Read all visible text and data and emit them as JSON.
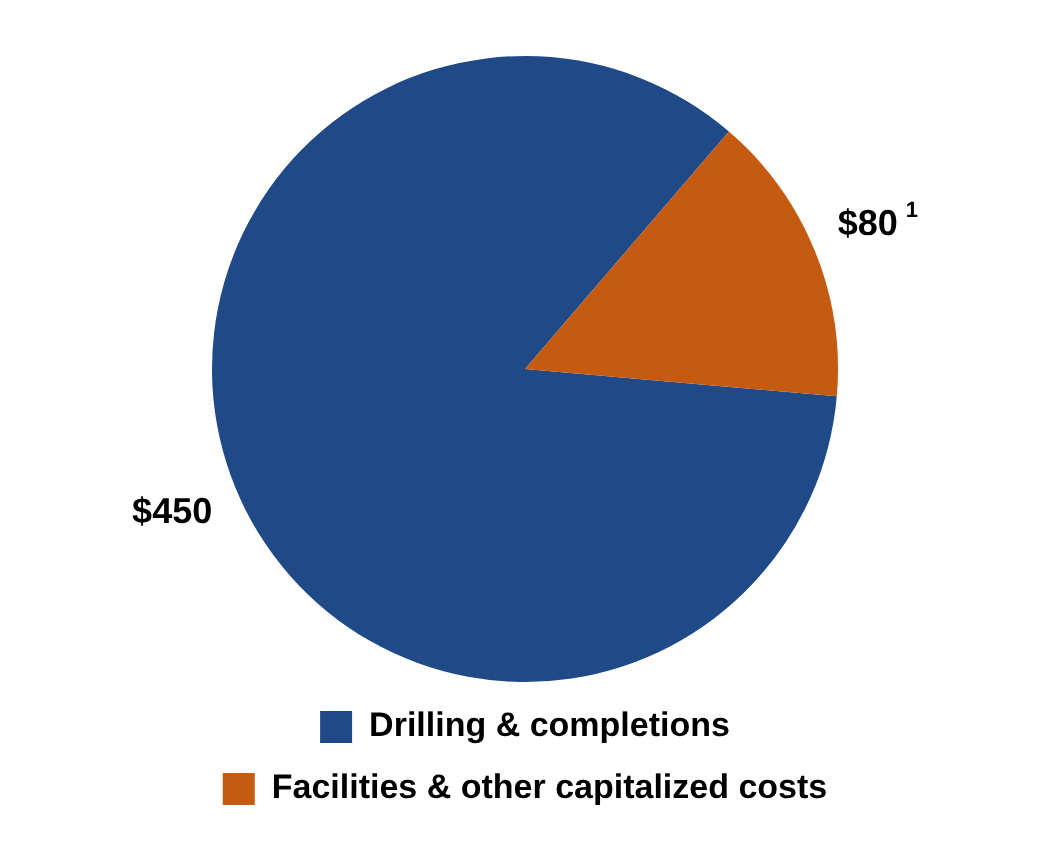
{
  "chart_data": {
    "type": "pie",
    "categories": [
      "Drilling & completions",
      "Facilities & other capitalized costs"
    ],
    "values": [
      450,
      80
    ],
    "colors": [
      "#1f4a87",
      "#c55a11"
    ],
    "value_labels": [
      "$450",
      "$80$^{1}$"
    ],
    "legend": "bottom"
  }
}
